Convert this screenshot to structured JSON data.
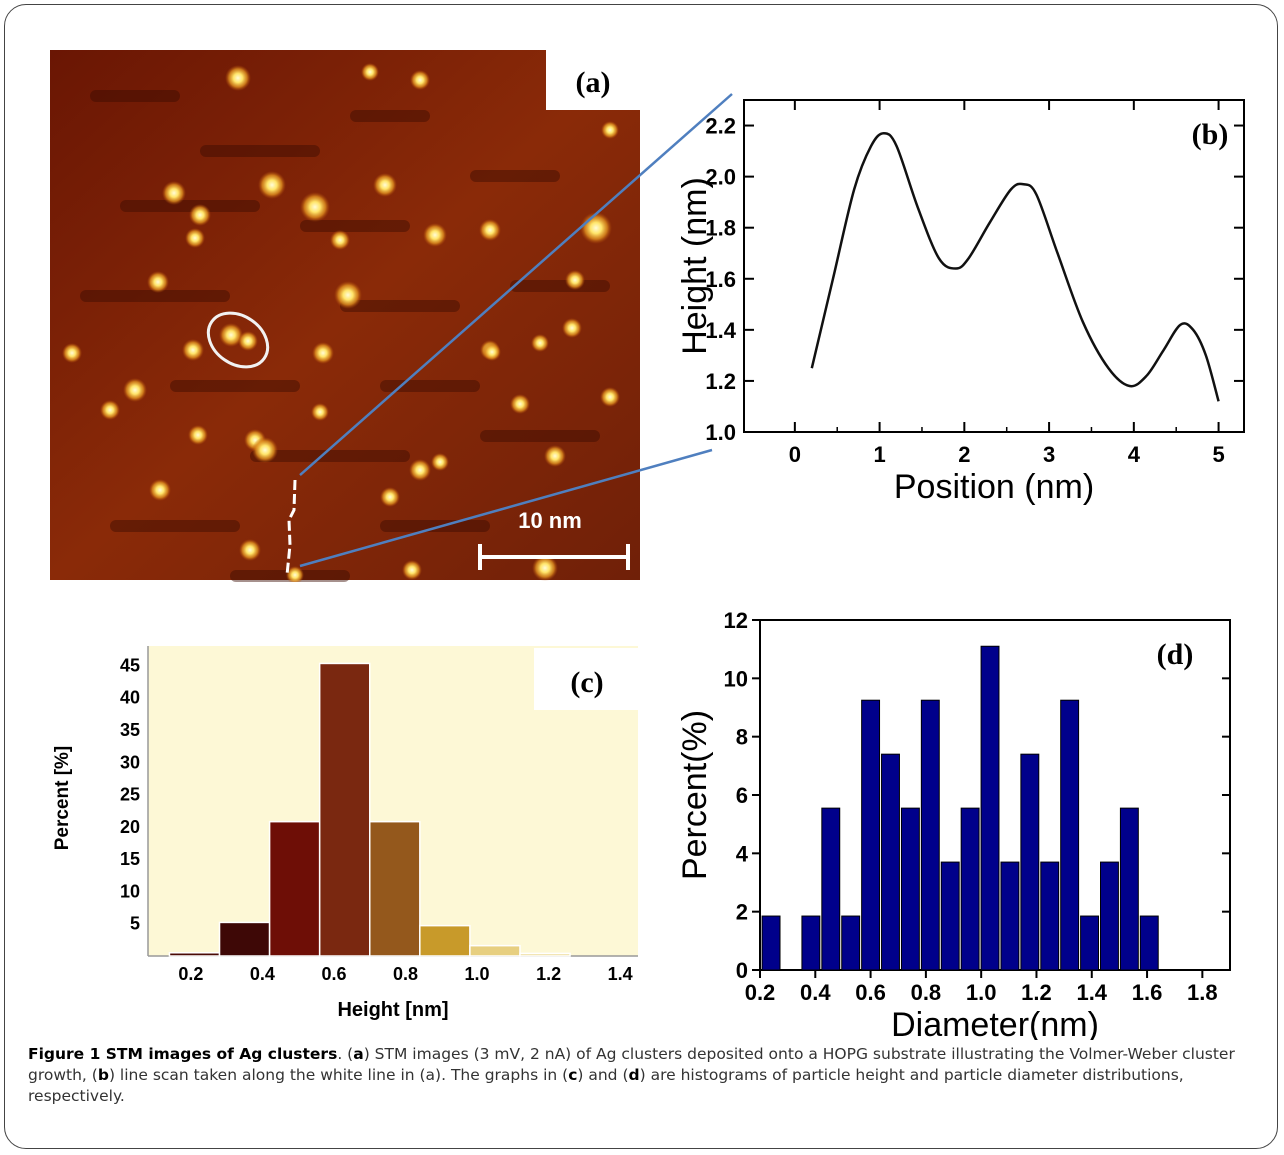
{
  "figure": {
    "panel_a": {
      "label": "(a)",
      "scale_bar": "10 nm",
      "colors": {
        "background": "#7a1a05",
        "cluster": "#fff2a0"
      }
    },
    "caption": {
      "title": "Figure 1 STM images of Ag clusters",
      "a_label": "a",
      "text_a": " STM images (3 mV, 2 nA) of Ag clusters deposited onto a HOPG substrate illustrating the Volmer-Weber cluster growth, (",
      "b_label": "b",
      "text_b": ") line scan taken along the white line in (a). The graphs in (",
      "c_label": "c",
      "text_c": ") and (",
      "d_label": "d",
      "text_d": ") are histograms of particle height and particle diameter distributions, respectively."
    }
  },
  "chart_data": [
    {
      "id": "b",
      "type": "line",
      "panel_label": "(b)",
      "xlabel": "Position (nm)",
      "ylabel": "Height (nm)",
      "xlim": [
        -0.6,
        5.3
      ],
      "ylim": [
        1.0,
        2.3
      ],
      "xticks": [
        0,
        1,
        2,
        3,
        4,
        5
      ],
      "yticks": [
        1.0,
        1.2,
        1.4,
        1.6,
        1.8,
        2.0,
        2.2
      ],
      "x": [
        0.2,
        0.45,
        0.7,
        0.9,
        1.05,
        1.2,
        1.45,
        1.7,
        1.9,
        2.05,
        2.3,
        2.55,
        2.7,
        2.85,
        3.1,
        3.4,
        3.7,
        3.95,
        4.15,
        4.35,
        4.55,
        4.7,
        4.85,
        5.0
      ],
      "y": [
        1.25,
        1.6,
        1.95,
        2.12,
        2.17,
        2.12,
        1.88,
        1.68,
        1.64,
        1.68,
        1.82,
        1.95,
        1.97,
        1.93,
        1.7,
        1.43,
        1.25,
        1.18,
        1.22,
        1.32,
        1.42,
        1.4,
        1.3,
        1.12
      ],
      "grid": false
    },
    {
      "id": "c",
      "type": "bar",
      "panel_label": "(c)",
      "xlabel": "Height [nm]",
      "ylabel": "Percent [%]",
      "xlim": [
        0.08,
        1.45
      ],
      "ylim": [
        0,
        48
      ],
      "xticks": [
        "0.2",
        "0.4",
        "0.6",
        "0.8",
        "1.0",
        "1.2",
        "1.4"
      ],
      "yticks": [
        "5",
        "10",
        "15",
        "20",
        "25",
        "30",
        "35",
        "40",
        "45"
      ],
      "bins": [
        [
          0.14,
          0.28
        ],
        [
          0.28,
          0.42
        ],
        [
          0.42,
          0.56
        ],
        [
          0.56,
          0.7
        ],
        [
          0.7,
          0.84
        ],
        [
          0.84,
          0.98
        ],
        [
          0.98,
          1.12
        ],
        [
          1.12,
          1.26
        ]
      ],
      "values": [
        0.5,
        5.2,
        20.8,
        45.3,
        20.8,
        4.7,
        1.6,
        0.4
      ],
      "colors": [
        "#4a0a05",
        "#3e0806",
        "#6e0e06",
        "#7a2810",
        "#94581c",
        "#c89a2a",
        "#e7cf80",
        "#efe0a6"
      ],
      "background": "#fdf8d6"
    },
    {
      "id": "d",
      "type": "bar",
      "panel_label": "(d)",
      "xlabel": "Diameter(nm)",
      "ylabel": "Percent(%)",
      "xlim": [
        0.2,
        1.9
      ],
      "ylim": [
        0,
        12
      ],
      "xticks": [
        "0.2",
        "0.4",
        "0.6",
        "0.8",
        "1.0",
        "1.2",
        "1.4",
        "1.6",
        "1.8"
      ],
      "yticks": [
        "0",
        "2",
        "4",
        "6",
        "8",
        "10",
        "12"
      ],
      "bar_width": 0.072,
      "x": [
        0.24,
        0.312,
        0.384,
        0.456,
        0.528,
        0.6,
        0.672,
        0.744,
        0.816,
        0.888,
        0.96,
        1.032,
        1.104,
        1.176,
        1.248,
        1.32,
        1.392,
        1.464,
        1.536,
        1.608,
        1.68,
        1.752,
        1.824
      ],
      "values": [
        1.85,
        0,
        1.85,
        5.55,
        1.85,
        9.25,
        7.4,
        5.55,
        9.25,
        3.7,
        5.55,
        11.1,
        3.7,
        7.4,
        3.7,
        9.25,
        1.85,
        3.7,
        5.55,
        1.85,
        0,
        0,
        0
      ],
      "color": "#00008b"
    }
  ]
}
